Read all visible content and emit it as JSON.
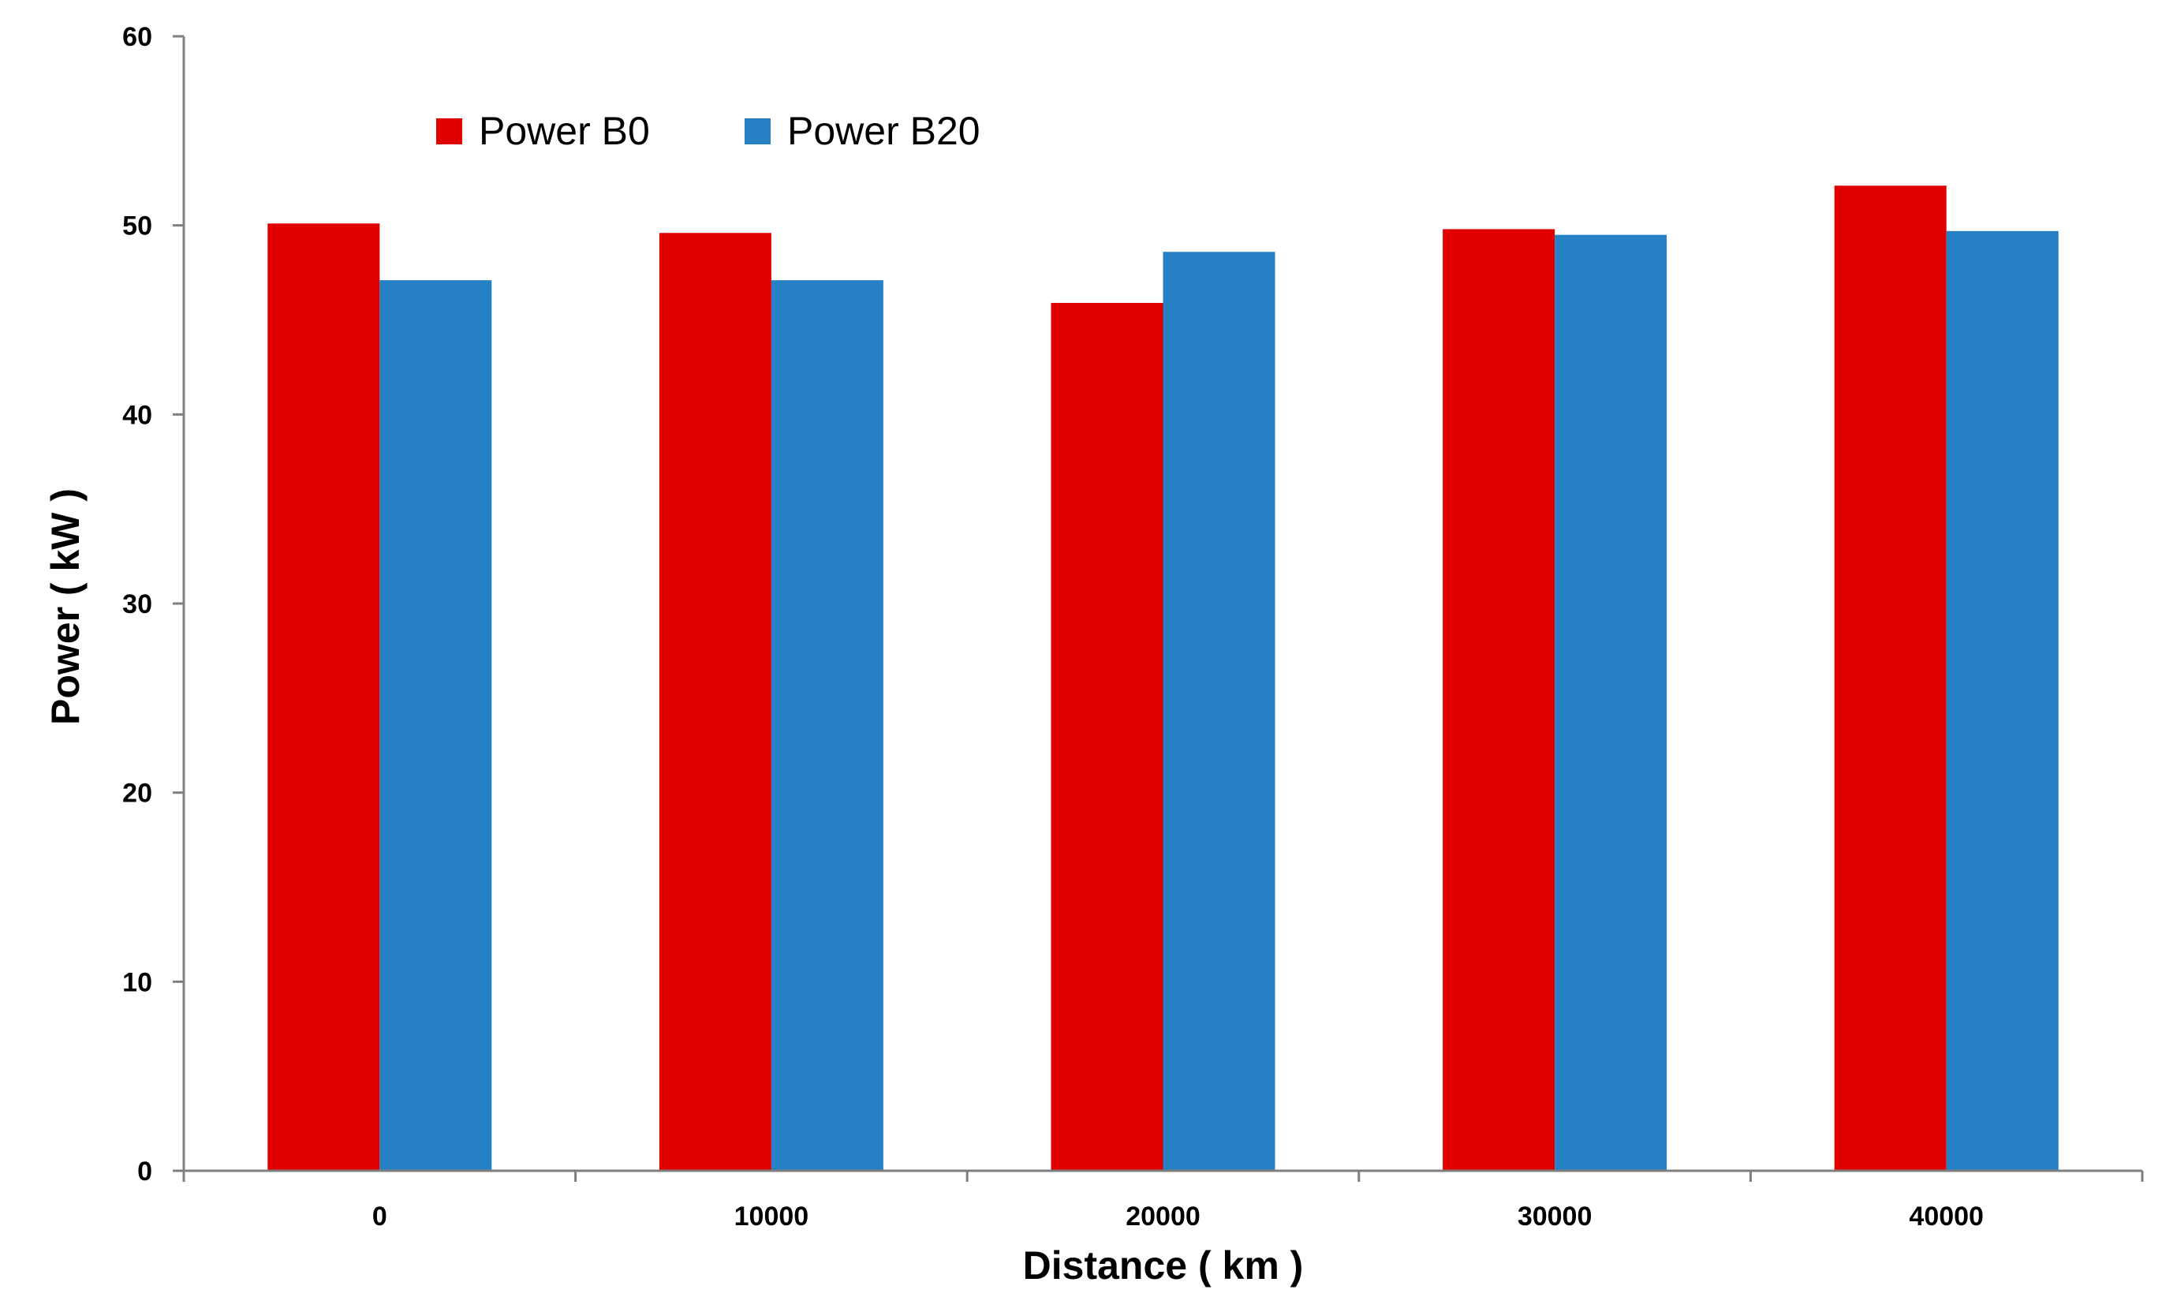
{
  "chart_data": {
    "type": "bar",
    "xlabel": "Distance ( km )",
    "ylabel": "Power ( kW )",
    "categories": [
      "0",
      "10000",
      "20000",
      "30000",
      "40000"
    ],
    "series": [
      {
        "name": "Power B0",
        "color": "#e00000",
        "values": [
          50.1,
          49.6,
          45.9,
          49.8,
          52.1
        ]
      },
      {
        "name": "Power B20",
        "color": "#2581c4",
        "values": [
          47.1,
          47.1,
          48.6,
          49.5,
          49.7
        ]
      }
    ],
    "ylim": [
      0,
      60
    ],
    "yticks": [
      0,
      10,
      20,
      30,
      40,
      50,
      60
    ],
    "grid": false,
    "legend_position": "top-left"
  }
}
